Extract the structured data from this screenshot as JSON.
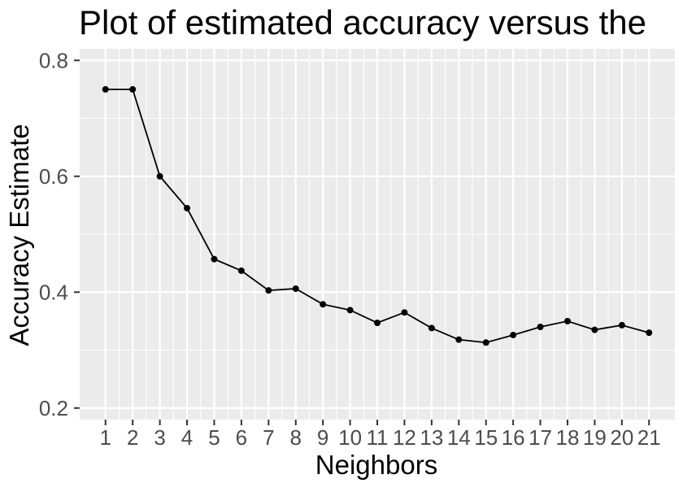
{
  "chart_data": {
    "type": "line",
    "title": "Plot of estimated accuracy versus the",
    "xlabel": "Neighbors",
    "ylabel": "Accuracy Estimate",
    "x": [
      1,
      2,
      3,
      4,
      5,
      6,
      7,
      8,
      9,
      10,
      11,
      12,
      13,
      14,
      15,
      16,
      17,
      18,
      19,
      20,
      21
    ],
    "x_tick_labels": [
      "1",
      "2",
      "3",
      "4",
      "5",
      "6",
      "7",
      "8",
      "9",
      "10",
      "11",
      "12",
      "13",
      "14",
      "15",
      "16",
      "17",
      "18",
      "19",
      "20",
      "21"
    ],
    "series": [
      {
        "values": [
          0.75,
          0.75,
          0.6,
          0.545,
          0.457,
          0.437,
          0.403,
          0.406,
          0.379,
          0.369,
          0.347,
          0.365,
          0.338,
          0.318,
          0.313,
          0.326,
          0.34,
          0.35,
          0.335,
          0.343,
          0.33
        ],
        "color": "#000000"
      }
    ],
    "y_ticks": [
      0.2,
      0.4,
      0.6,
      0.8
    ],
    "y_tick_labels": [
      "0.2",
      "0.4",
      "0.6",
      "0.8"
    ],
    "xlim": [
      0.05,
      21.95
    ],
    "ylim": [
      0.18,
      0.82
    ],
    "grid": true,
    "panel_color": "#ebebeb",
    "grid_color": "#ffffff"
  }
}
